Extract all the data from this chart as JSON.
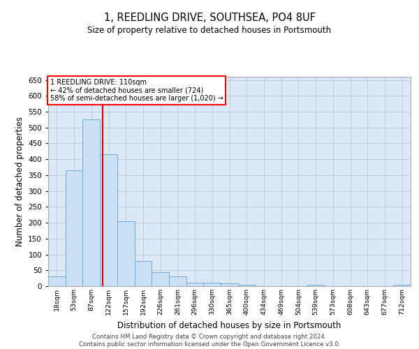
{
  "title1": "1, REEDLING DRIVE, SOUTHSEA, PO4 8UF",
  "title2": "Size of property relative to detached houses in Portsmouth",
  "xlabel": "Distribution of detached houses by size in Portsmouth",
  "ylabel": "Number of detached properties",
  "footer1": "Contains HM Land Registry data © Crown copyright and database right 2024.",
  "footer2": "Contains public sector information licensed under the Open Government Licence v3.0.",
  "annotation_line1": "1 REEDLING DRIVE: 110sqm",
  "annotation_line2": "← 42% of detached houses are smaller (724)",
  "annotation_line3": "58% of semi-detached houses are larger (1,020) →",
  "bar_color": "#cce0f5",
  "bar_edge_color": "#6aaed6",
  "grid_color": "#b8c8dc",
  "background_color": "#dce8f5",
  "vline_color": "#cc0000",
  "categories": [
    "18sqm",
    "53sqm",
    "87sqm",
    "122sqm",
    "157sqm",
    "192sqm",
    "226sqm",
    "261sqm",
    "296sqm",
    "330sqm",
    "365sqm",
    "400sqm",
    "434sqm",
    "469sqm",
    "504sqm",
    "539sqm",
    "573sqm",
    "608sqm",
    "643sqm",
    "677sqm",
    "712sqm"
  ],
  "values": [
    30,
    365,
    525,
    415,
    205,
    80,
    45,
    30,
    10,
    10,
    8,
    5,
    0,
    0,
    0,
    5,
    0,
    0,
    0,
    0,
    4
  ],
  "ylim": [
    0,
    660
  ],
  "yticks": [
    0,
    50,
    100,
    150,
    200,
    250,
    300,
    350,
    400,
    450,
    500,
    550,
    600,
    650
  ]
}
